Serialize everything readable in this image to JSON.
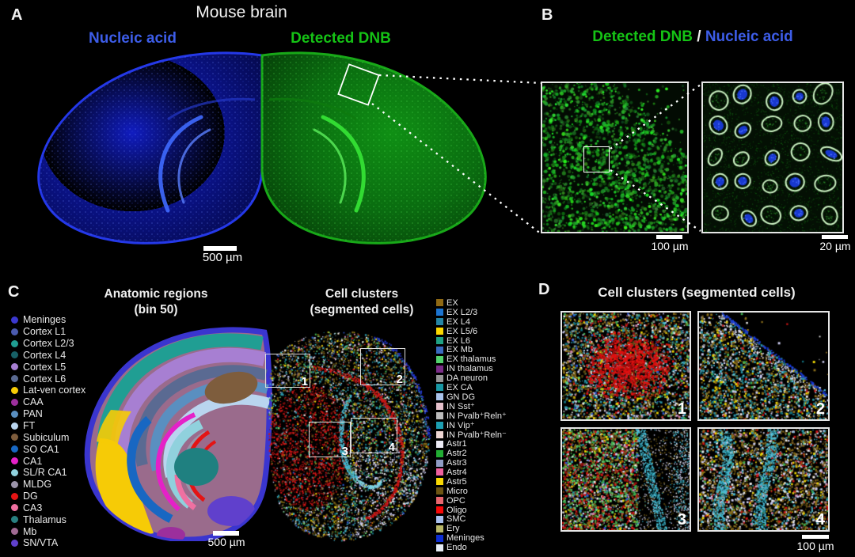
{
  "panels": {
    "A": {
      "label": "A",
      "title": "Mouse brain",
      "left_caption": "Nucleic acid",
      "right_caption": "Detected DNB",
      "scalebar": "500 µm",
      "colors": {
        "nucleic_blue": "#3d5de8",
        "dnb_green": "#15c315"
      }
    },
    "B": {
      "label": "B",
      "title_dnb": "Detected DNB",
      "title_sep": " / ",
      "title_nucleic": "Nucleic acid",
      "scalebar_left": "100 µm",
      "scalebar_right": "20 µm"
    },
    "C": {
      "label": "C",
      "left_title_line1": "Anatomic regions",
      "left_title_line2": "(bin 50)",
      "right_title_line1": "Cell clusters",
      "right_title_line2": "(segmented cells)",
      "scalebar": "500 µm",
      "boxes": [
        "1",
        "2",
        "3",
        "4"
      ],
      "regions_legend": [
        {
          "label": "Meninges",
          "color": "#3b38cf"
        },
        {
          "label": "Cortex L1",
          "color": "#4a5aae"
        },
        {
          "label": "Cortex L2/3",
          "color": "#209e93"
        },
        {
          "label": "Cortex L4",
          "color": "#176066"
        },
        {
          "label": "Cortex L5",
          "color": "#a77fd2"
        },
        {
          "label": "Cortex L6",
          "color": "#5a6a92"
        },
        {
          "label": "Lat-ven cortex",
          "color": "#f6cb06"
        },
        {
          "label": "CAA",
          "color": "#9c2f9c"
        },
        {
          "label": "PAN",
          "color": "#5a8fc0"
        },
        {
          "label": "FT",
          "color": "#b9d5ef"
        },
        {
          "label": "Subiculum",
          "color": "#7e5d3d"
        },
        {
          "label": "SO CA1",
          "color": "#1867c2"
        },
        {
          "label": "CA1",
          "color": "#e521c8"
        },
        {
          "label": "SL/R CA1",
          "color": "#90d1dd"
        },
        {
          "label": "MLDG",
          "color": "#9b93a9"
        },
        {
          "label": "DG",
          "color": "#e41414"
        },
        {
          "label": "CA3",
          "color": "#ef70a1"
        },
        {
          "label": "Thalamus",
          "color": "#287f80"
        },
        {
          "label": "Mb",
          "color": "#a06a93"
        },
        {
          "label": "SN/VTA",
          "color": "#6040cc"
        }
      ],
      "clusters_legend": [
        {
          "label": "EX",
          "color": "#8f6914"
        },
        {
          "label": "EX L2/3",
          "color": "#1c74d0"
        },
        {
          "label": "EX L4",
          "color": "#2585a5"
        },
        {
          "label": "EX L5/6",
          "color": "#fbd800"
        },
        {
          "label": "EX L6",
          "color": "#1fa183"
        },
        {
          "label": "EX Mb",
          "color": "#3a6ac0"
        },
        {
          "label": "EX thalamus",
          "color": "#52d26d"
        },
        {
          "label": "IN thalamus",
          "color": "#7b2d88"
        },
        {
          "label": "DA neuron",
          "color": "#969696"
        },
        {
          "label": "EX CA",
          "color": "#1898a5"
        },
        {
          "label": "GN DG",
          "color": "#a9c3eb"
        },
        {
          "label": "IN Sst⁺",
          "color": "#e7c2cd"
        },
        {
          "label": "IN Pvalb⁺Reln⁺",
          "color": "#bcbcbc"
        },
        {
          "label": "IN Vip⁺",
          "color": "#1d9fb2"
        },
        {
          "label": "IN Pvalb⁺Reln⁻",
          "color": "#eed6d4"
        },
        {
          "label": "Astr1",
          "color": "#edebf5"
        },
        {
          "label": "Astr2",
          "color": "#22ad33"
        },
        {
          "label": "Astr3",
          "color": "#8f9cc5"
        },
        {
          "label": "Astr4",
          "color": "#ee609e"
        },
        {
          "label": "Astr5",
          "color": "#f8d803"
        },
        {
          "label": "Micro",
          "color": "#6d5513"
        },
        {
          "label": "OPC",
          "color": "#e8666e"
        },
        {
          "label": "Oligo",
          "color": "#f50808"
        },
        {
          "label": "SMC",
          "color": "#a9c0ef"
        },
        {
          "label": "Ery",
          "color": "#b9b868"
        },
        {
          "label": "Meninges",
          "color": "#0d2ed3"
        },
        {
          "label": "Endo",
          "color": "#e6edf5"
        }
      ]
    },
    "D": {
      "label": "D",
      "title": "Cell clusters (segmented cells)",
      "scalebar": "100 µm",
      "boxes": [
        "1",
        "2",
        "3",
        "4"
      ]
    }
  }
}
